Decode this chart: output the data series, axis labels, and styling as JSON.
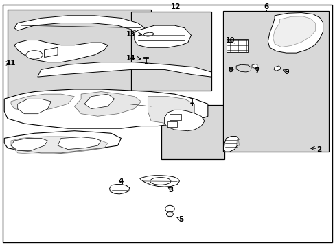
{
  "bg": "#ffffff",
  "lc": "#000000",
  "gray": "#d8d8d8",
  "fig_w": 4.89,
  "fig_h": 3.6,
  "dpi": 100,
  "outer_border": [
    0.01,
    0.01,
    0.98,
    0.97
  ],
  "boxes": {
    "11": [
      0.02,
      0.55,
      0.43,
      0.42
    ],
    "12_14": [
      0.38,
      0.62,
      0.25,
      0.34
    ],
    "1": [
      0.48,
      0.35,
      0.2,
      0.24
    ],
    "6": [
      0.66,
      0.38,
      0.32,
      0.58
    ]
  },
  "labels": {
    "11": [
      0.02,
      0.74,
      "left"
    ],
    "12": [
      0.52,
      0.98,
      "center"
    ],
    "13": [
      0.4,
      0.85,
      "right"
    ],
    "14": [
      0.4,
      0.74,
      "right"
    ],
    "1": [
      0.57,
      0.61,
      "center"
    ],
    "6": [
      0.8,
      0.98,
      "center"
    ],
    "10": [
      0.69,
      0.82,
      "center"
    ],
    "8": [
      0.69,
      0.62,
      "center"
    ],
    "7": [
      0.77,
      0.62,
      "center"
    ],
    "9": [
      0.87,
      0.62,
      "center"
    ],
    "2": [
      0.93,
      0.4,
      "center"
    ],
    "3": [
      0.52,
      0.22,
      "center"
    ],
    "4": [
      0.37,
      0.26,
      "center"
    ],
    "5": [
      0.54,
      0.1,
      "center"
    ]
  }
}
